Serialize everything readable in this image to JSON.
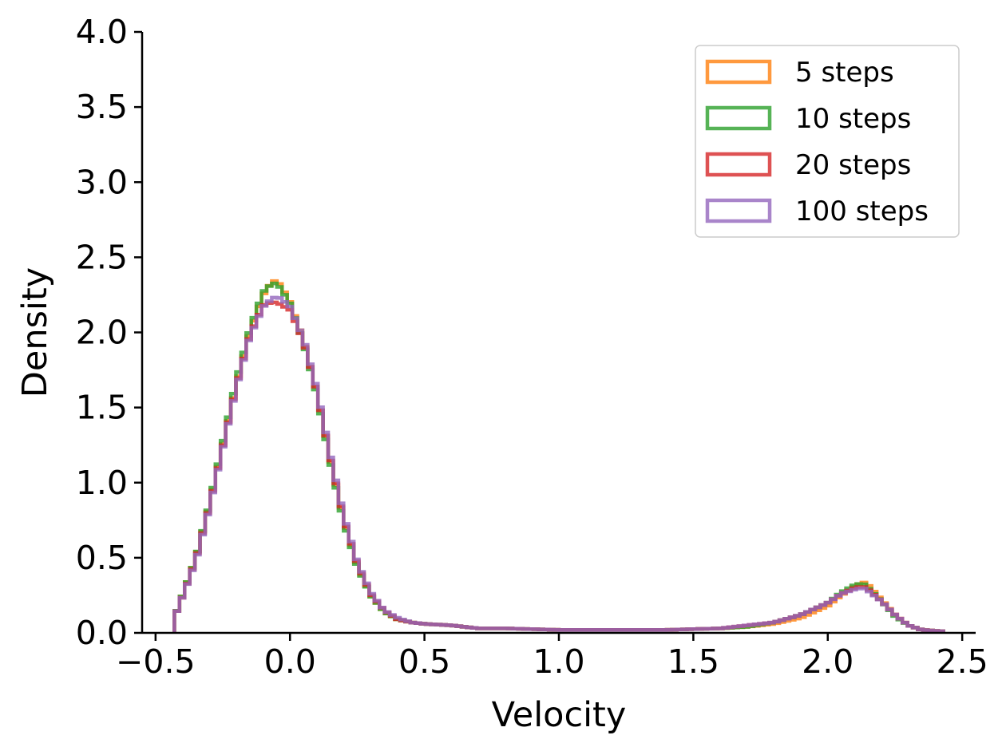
{
  "chart_data": {
    "type": "histogram-step",
    "xlabel": "Velocity",
    "ylabel": "Density",
    "xlim": [
      -0.55,
      2.55
    ],
    "ylim": [
      0.0,
      4.0
    ],
    "xticks": [
      -0.5,
      0.0,
      0.5,
      1.0,
      1.5,
      2.0,
      2.5
    ],
    "xtick_labels": [
      "−0.5",
      "0.0",
      "0.5",
      "1.0",
      "1.5",
      "2.0",
      "2.5"
    ],
    "yticks": [
      0.0,
      0.5,
      1.0,
      1.5,
      2.0,
      2.5,
      3.0,
      3.5,
      4.0
    ],
    "ytick_labels": [
      "0.0",
      "0.5",
      "1.0",
      "1.5",
      "2.0",
      "2.5",
      "3.0",
      "3.5",
      "4.0"
    ],
    "grid": false,
    "legend_position": "top-right",
    "x": [
      -0.43,
      -0.4,
      -0.35,
      -0.3,
      -0.25,
      -0.2,
      -0.15,
      -0.1,
      -0.07,
      -0.05,
      -0.03,
      0.0,
      0.05,
      0.1,
      0.15,
      0.2,
      0.25,
      0.3,
      0.35,
      0.4,
      0.45,
      0.5,
      0.6,
      0.7,
      0.8,
      1.0,
      1.2,
      1.4,
      1.6,
      1.7,
      1.8,
      1.9,
      2.0,
      2.05,
      2.1,
      2.13,
      2.15,
      2.2,
      2.25,
      2.3,
      2.35,
      2.43
    ],
    "series": [
      {
        "name": "5 steps",
        "color": "#ff7f0e",
        "values": [
          0.1,
          0.25,
          0.5,
          0.85,
          1.25,
          1.65,
          2.0,
          2.25,
          2.33,
          2.35,
          2.3,
          2.2,
          1.95,
          1.6,
          1.15,
          0.75,
          0.45,
          0.25,
          0.14,
          0.09,
          0.07,
          0.06,
          0.05,
          0.03,
          0.03,
          0.02,
          0.02,
          0.02,
          0.03,
          0.04,
          0.06,
          0.1,
          0.18,
          0.25,
          0.31,
          0.34,
          0.32,
          0.22,
          0.12,
          0.05,
          0.02,
          0.01
        ]
      },
      {
        "name": "10 steps",
        "color": "#2ca02c",
        "values": [
          0.1,
          0.25,
          0.5,
          0.86,
          1.27,
          1.68,
          2.02,
          2.27,
          2.32,
          2.33,
          2.28,
          2.19,
          1.93,
          1.58,
          1.13,
          0.73,
          0.44,
          0.25,
          0.14,
          0.09,
          0.07,
          0.06,
          0.05,
          0.03,
          0.03,
          0.02,
          0.02,
          0.02,
          0.03,
          0.04,
          0.07,
          0.12,
          0.2,
          0.27,
          0.32,
          0.33,
          0.3,
          0.21,
          0.11,
          0.05,
          0.02,
          0.01
        ]
      },
      {
        "name": "20 steps",
        "color": "#d62728",
        "values": [
          0.1,
          0.24,
          0.49,
          0.84,
          1.24,
          1.64,
          1.98,
          2.18,
          2.2,
          2.2,
          2.18,
          2.15,
          1.94,
          1.6,
          1.16,
          0.76,
          0.46,
          0.26,
          0.15,
          0.09,
          0.07,
          0.06,
          0.05,
          0.03,
          0.03,
          0.02,
          0.02,
          0.02,
          0.03,
          0.05,
          0.07,
          0.12,
          0.2,
          0.26,
          0.3,
          0.31,
          0.29,
          0.21,
          0.12,
          0.05,
          0.02,
          0.01
        ]
      },
      {
        "name": "100 steps",
        "color": "#9467bd",
        "values": [
          0.1,
          0.24,
          0.48,
          0.83,
          1.23,
          1.63,
          1.97,
          2.17,
          2.22,
          2.24,
          2.22,
          2.17,
          1.96,
          1.62,
          1.18,
          0.78,
          0.47,
          0.27,
          0.15,
          0.1,
          0.07,
          0.06,
          0.05,
          0.03,
          0.03,
          0.02,
          0.02,
          0.02,
          0.03,
          0.05,
          0.07,
          0.12,
          0.2,
          0.26,
          0.29,
          0.3,
          0.28,
          0.21,
          0.12,
          0.05,
          0.02,
          0.01
        ]
      }
    ]
  }
}
